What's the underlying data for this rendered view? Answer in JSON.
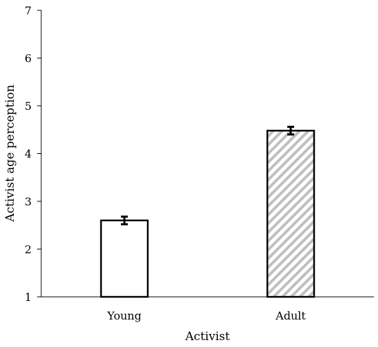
{
  "chart_data": {
    "type": "bar",
    "xlabel": "Activist",
    "ylabel": "Activist age perception",
    "ylim": [
      1,
      7
    ],
    "yticks": [
      1,
      2,
      3,
      4,
      5,
      6,
      7
    ],
    "categories": [
      "Young",
      "Adult"
    ],
    "values": [
      2.6,
      4.48
    ],
    "errors": [
      0.08,
      0.08
    ],
    "bar_styles": [
      "solid-white",
      "diagonal-hatch"
    ],
    "grid": false,
    "legend": "none"
  },
  "colors": {
    "axis": "#000000",
    "bar_edge": "#000000",
    "bar_fill": "#ffffff",
    "hatch": "#bfbfbf"
  }
}
